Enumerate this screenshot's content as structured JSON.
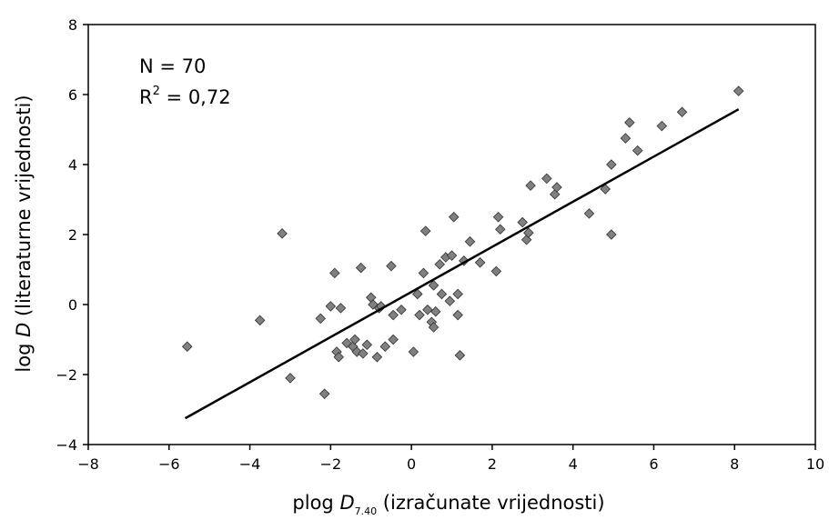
{
  "chart_data": {
    "type": "scatter",
    "xlabel": {
      "prefix": "plog ",
      "var": "D",
      "sub": "7.40",
      "suffix": " (izračunate vrijednosti)"
    },
    "ylabel": {
      "prefix": "log ",
      "var": "D",
      "suffix": " (literaturne vrijednosti)"
    },
    "xlim": [
      -8,
      10
    ],
    "ylim": [
      -4,
      8
    ],
    "xticks": [
      -8,
      -6,
      -4,
      -2,
      0,
      2,
      4,
      6,
      8,
      10
    ],
    "yticks": [
      -4,
      -2,
      0,
      2,
      4,
      6,
      8
    ],
    "xtick_labels": [
      "−8",
      "−6",
      "−4",
      "−2",
      "0",
      "2",
      "4",
      "6",
      "8",
      "10"
    ],
    "ytick_labels": [
      "−4",
      "−2",
      "0",
      "2",
      "4",
      "6",
      "8"
    ],
    "grid": false,
    "annotations": {
      "n_text": "N = 70",
      "r2_prefix": "R",
      "r2_sup": "2",
      "r2_suffix": " = 0,72"
    },
    "marker_color": "#808080",
    "marker_edge": "#303030",
    "line_color": "#000000",
    "trendline": {
      "x": [
        -5.6,
        8.1
      ],
      "y": [
        -3.25,
        5.58
      ]
    },
    "points": [
      [
        -5.55,
        -1.2
      ],
      [
        -3.75,
        -0.45
      ],
      [
        -3.2,
        2.03
      ],
      [
        -3.0,
        -2.1
      ],
      [
        -2.25,
        -0.4
      ],
      [
        -2.15,
        -2.55
      ],
      [
        -2.0,
        -0.05
      ],
      [
        -1.9,
        0.9
      ],
      [
        -1.85,
        -1.35
      ],
      [
        -1.8,
        -1.5
      ],
      [
        -1.75,
        -0.1
      ],
      [
        -1.6,
        -1.1
      ],
      [
        -1.45,
        -1.2
      ],
      [
        -1.4,
        -1.0
      ],
      [
        -1.35,
        -1.35
      ],
      [
        -1.25,
        1.05
      ],
      [
        -1.2,
        -1.4
      ],
      [
        -1.1,
        -1.15
      ],
      [
        -1.0,
        0.2
      ],
      [
        -0.95,
        0.0
      ],
      [
        -0.85,
        -1.5
      ],
      [
        -0.8,
        -0.1
      ],
      [
        -0.75,
        -0.05
      ],
      [
        -0.65,
        -1.2
      ],
      [
        -0.5,
        1.1
      ],
      [
        -0.45,
        -0.3
      ],
      [
        -0.45,
        -1.0
      ],
      [
        -0.25,
        -0.15
      ],
      [
        0.05,
        -1.35
      ],
      [
        0.15,
        0.3
      ],
      [
        0.2,
        -0.3
      ],
      [
        0.3,
        0.9
      ],
      [
        0.35,
        2.1
      ],
      [
        0.4,
        -0.15
      ],
      [
        0.5,
        -0.5
      ],
      [
        0.55,
        -0.65
      ],
      [
        0.55,
        0.55
      ],
      [
        0.6,
        -0.2
      ],
      [
        0.7,
        1.15
      ],
      [
        0.75,
        0.3
      ],
      [
        0.85,
        1.35
      ],
      [
        0.95,
        0.1
      ],
      [
        1.0,
        1.4
      ],
      [
        1.05,
        2.5
      ],
      [
        1.15,
        0.3
      ],
      [
        1.15,
        -0.3
      ],
      [
        1.2,
        -1.45
      ],
      [
        1.3,
        1.25
      ],
      [
        1.45,
        1.8
      ],
      [
        1.7,
        1.2
      ],
      [
        2.1,
        0.95
      ],
      [
        2.15,
        2.5
      ],
      [
        2.2,
        2.15
      ],
      [
        2.75,
        2.35
      ],
      [
        2.85,
        1.85
      ],
      [
        2.9,
        2.05
      ],
      [
        2.95,
        3.4
      ],
      [
        3.35,
        3.6
      ],
      [
        3.55,
        3.15
      ],
      [
        3.6,
        3.35
      ],
      [
        4.4,
        2.6
      ],
      [
        4.8,
        3.3
      ],
      [
        4.95,
        4.0
      ],
      [
        4.95,
        2.0
      ],
      [
        5.3,
        4.75
      ],
      [
        5.4,
        5.2
      ],
      [
        5.6,
        4.4
      ],
      [
        6.2,
        5.1
      ],
      [
        6.7,
        5.5
      ],
      [
        8.1,
        6.1
      ]
    ]
  }
}
